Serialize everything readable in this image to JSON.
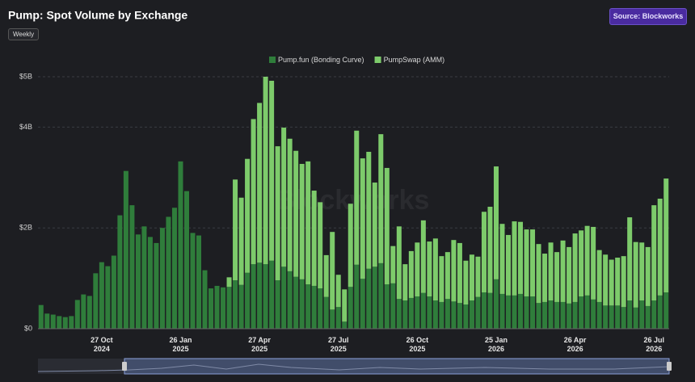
{
  "chart_data": {
    "type": "stacked_bar",
    "title": "Pump: Spot Volume by Exchange",
    "frequency_button": "Weekly",
    "source_button": "Source: Blockworks",
    "watermark": "Blockworks",
    "categories": [
      null,
      null,
      null,
      null,
      null,
      null,
      null,
      null,
      null,
      null,
      "27 Oct\n2024",
      null,
      null,
      null,
      null,
      null,
      null,
      null,
      null,
      null,
      null,
      null,
      null,
      "26 Jan\n2025",
      null,
      null,
      null,
      null,
      null,
      null,
      null,
      null,
      null,
      null,
      null,
      null,
      "27 Apr\n2025",
      null,
      null,
      null,
      null,
      null,
      null,
      null,
      null,
      null,
      null,
      null,
      null,
      "27 Jul\n2025",
      null,
      null,
      null,
      null,
      null,
      null,
      null,
      null,
      null,
      null,
      null,
      null,
      "26 Oct\n2025",
      null,
      null,
      null,
      null,
      null,
      null,
      null,
      null,
      null,
      null,
      null,
      null,
      "25 Jan\n2026",
      null,
      null,
      null,
      null,
      null,
      null,
      null,
      null,
      null,
      null,
      null,
      null,
      "26 Apr\n2026",
      null,
      null,
      null,
      null,
      null,
      null,
      null,
      null,
      null,
      null,
      null,
      null,
      "26 Jul\n2026",
      null,
      null
    ],
    "series": [
      {
        "name": "Pump.fun (Bonding Curve)",
        "color": "#2f7d3b",
        "values": [
          0.47,
          0.3,
          0.28,
          0.25,
          0.23,
          0.25,
          0.57,
          0.68,
          0.65,
          1.1,
          1.32,
          1.24,
          1.45,
          2.25,
          3.13,
          2.45,
          1.87,
          2.03,
          1.82,
          1.7,
          2.0,
          2.22,
          2.4,
          3.32,
          2.73,
          1.9,
          1.85,
          1.16,
          0.8,
          0.85,
          0.82,
          0.83,
          0.96,
          0.87,
          1.11,
          1.28,
          1.31,
          1.28,
          1.35,
          0.96,
          1.23,
          1.14,
          1.03,
          0.98,
          0.88,
          0.85,
          0.8,
          0.63,
          0.38,
          0.43,
          0.14,
          0.83,
          1.27,
          0.99,
          1.19,
          1.23,
          1.3,
          0.88,
          0.9,
          0.59,
          0.56,
          0.61,
          0.64,
          0.71,
          0.64,
          0.56,
          0.53,
          0.59,
          0.54,
          0.51,
          0.48,
          0.56,
          0.63,
          0.72,
          0.71,
          0.98,
          0.69,
          0.66,
          0.66,
          0.69,
          0.64,
          0.64,
          0.51,
          0.53,
          0.56,
          0.53,
          0.53,
          0.5,
          0.53,
          0.64,
          0.66,
          0.58,
          0.53,
          0.46,
          0.46,
          0.46,
          0.43,
          0.56,
          0.42,
          0.56,
          0.45,
          0.56,
          0.66,
          0.72
        ]
      },
      {
        "name": "PumpSwap (AMM)",
        "color": "#7dcb6b",
        "values": [
          0,
          0,
          0,
          0,
          0,
          0,
          0,
          0,
          0,
          0,
          0,
          0,
          0,
          0,
          0,
          0,
          0,
          0,
          0,
          0,
          0,
          0,
          0,
          0,
          0,
          0,
          0,
          0,
          0,
          0,
          0,
          0.19,
          2.0,
          1.73,
          2.26,
          2.88,
          3.17,
          3.72,
          3.57,
          2.66,
          2.76,
          2.63,
          2.5,
          2.29,
          2.44,
          1.89,
          1.71,
          0.83,
          1.54,
          0.64,
          0.64,
          1.65,
          2.66,
          2.39,
          2.32,
          1.67,
          2.56,
          2.31,
          0.74,
          1.44,
          0.72,
          0.93,
          1.07,
          1.44,
          1.09,
          1.23,
          0.91,
          0.93,
          1.22,
          1.19,
          0.87,
          0.91,
          0.8,
          1.6,
          1.71,
          2.24,
          1.39,
          1.2,
          1.47,
          1.43,
          1.33,
          1.33,
          1.17,
          0.96,
          1.15,
          0.99,
          1.22,
          1.12,
          1.36,
          1.31,
          1.38,
          1.44,
          1.03,
          1.01,
          0.91,
          0.95,
          1.01,
          1.65,
          1.3,
          1.15,
          1.17,
          1.89,
          1.92,
          2.26
        ]
      }
    ],
    "ylim": [
      0,
      5
    ],
    "yticks": [
      {
        "value": 0,
        "label": "$0"
      },
      {
        "value": 2,
        "label": "$2B"
      },
      {
        "value": 4,
        "label": "$4B"
      },
      {
        "value": 5,
        "label": "$5B"
      }
    ],
    "grid": true,
    "legend": "top"
  }
}
